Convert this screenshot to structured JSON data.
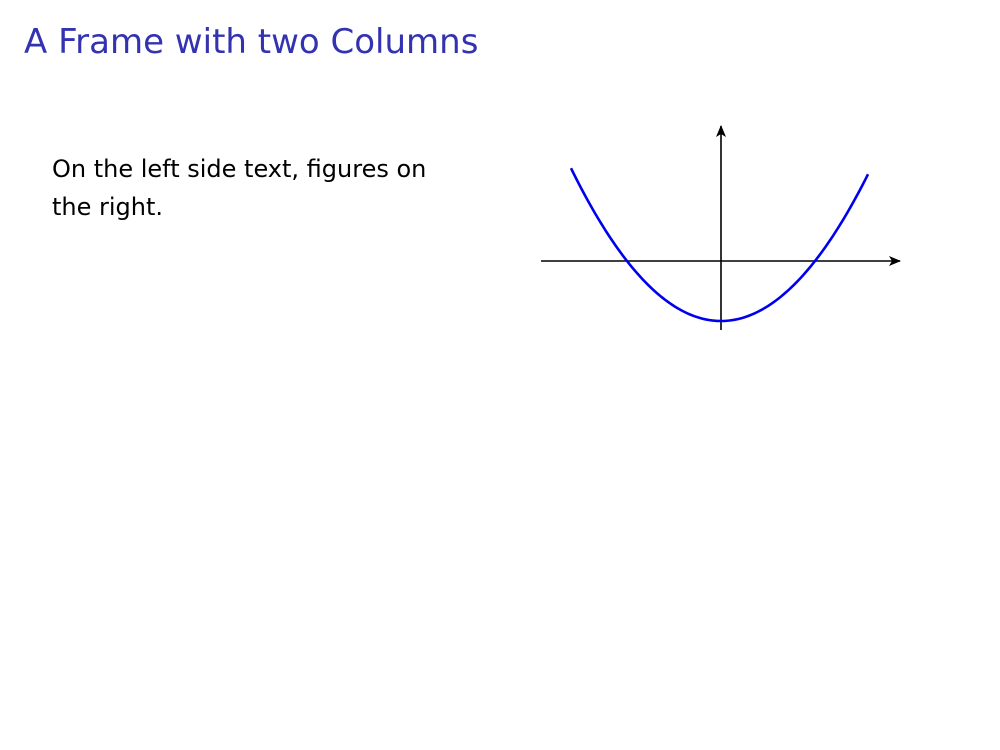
{
  "frame": {
    "title": "A Frame with two Columns"
  },
  "left_column": {
    "text": "On the left side text, figures on the right."
  },
  "right_column": {
    "figure": {
      "curve_color": "#0000ee",
      "axis_color": "#000000"
    }
  }
}
